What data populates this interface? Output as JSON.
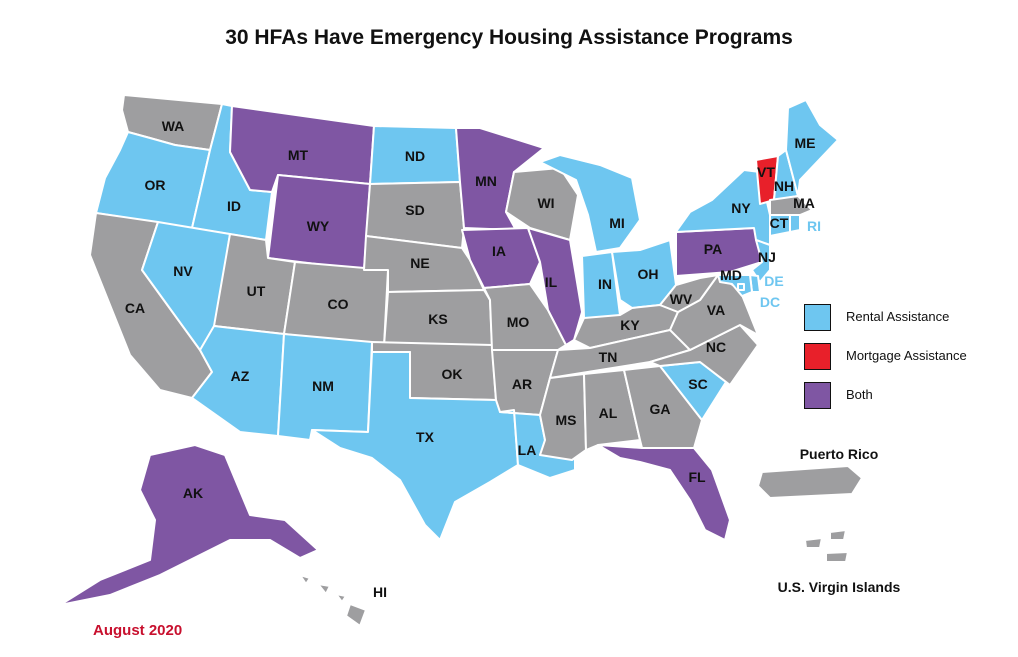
{
  "title": "30 HFAs Have Emergency Housing Assistance Programs",
  "date": "August 2020",
  "colors": {
    "rental": "#6ec6f0",
    "mortgage": "#e8202a",
    "both": "#7f56a3",
    "none": "#9e9ea0",
    "label_blue": "#6ec6f0",
    "date_red": "#c8102e"
  },
  "legend": [
    {
      "key": "rental",
      "label": "Rental Assistance"
    },
    {
      "key": "mortgage",
      "label": "Mortgage Assistance"
    },
    {
      "key": "both",
      "label": "Both"
    }
  ],
  "territory_labels": {
    "puerto_rico": "Puerto Rico",
    "virgin_islands": "U.S. Virgin Islands",
    "hawaii": "HI"
  },
  "states": [
    {
      "abbr": "WA",
      "category": "none"
    },
    {
      "abbr": "OR",
      "category": "rental"
    },
    {
      "abbr": "CA",
      "category": "none"
    },
    {
      "abbr": "ID",
      "category": "rental"
    },
    {
      "abbr": "NV",
      "category": "rental"
    },
    {
      "abbr": "MT",
      "category": "both"
    },
    {
      "abbr": "WY",
      "category": "both"
    },
    {
      "abbr": "UT",
      "category": "none"
    },
    {
      "abbr": "AZ",
      "category": "rental"
    },
    {
      "abbr": "CO",
      "category": "none"
    },
    {
      "abbr": "NM",
      "category": "rental"
    },
    {
      "abbr": "ND",
      "category": "rental"
    },
    {
      "abbr": "SD",
      "category": "none"
    },
    {
      "abbr": "NE",
      "category": "none"
    },
    {
      "abbr": "KS",
      "category": "none"
    },
    {
      "abbr": "OK",
      "category": "none"
    },
    {
      "abbr": "TX",
      "category": "rental"
    },
    {
      "abbr": "MN",
      "category": "both"
    },
    {
      "abbr": "IA",
      "category": "both"
    },
    {
      "abbr": "MO",
      "category": "none"
    },
    {
      "abbr": "AR",
      "category": "none"
    },
    {
      "abbr": "LA",
      "category": "rental"
    },
    {
      "abbr": "WI",
      "category": "none"
    },
    {
      "abbr": "IL",
      "category": "both"
    },
    {
      "abbr": "MI",
      "category": "rental"
    },
    {
      "abbr": "IN",
      "category": "rental"
    },
    {
      "abbr": "OH",
      "category": "rental"
    },
    {
      "abbr": "KY",
      "category": "none"
    },
    {
      "abbr": "TN",
      "category": "none"
    },
    {
      "abbr": "MS",
      "category": "none"
    },
    {
      "abbr": "AL",
      "category": "none"
    },
    {
      "abbr": "GA",
      "category": "none"
    },
    {
      "abbr": "FL",
      "category": "both"
    },
    {
      "abbr": "SC",
      "category": "rental"
    },
    {
      "abbr": "NC",
      "category": "none"
    },
    {
      "abbr": "VA",
      "category": "none"
    },
    {
      "abbr": "WV",
      "category": "none"
    },
    {
      "abbr": "PA",
      "category": "both"
    },
    {
      "abbr": "NY",
      "category": "rental"
    },
    {
      "abbr": "VT",
      "category": "mortgage"
    },
    {
      "abbr": "NH",
      "category": "rental"
    },
    {
      "abbr": "ME",
      "category": "rental"
    },
    {
      "abbr": "MA",
      "category": "none"
    },
    {
      "abbr": "CT",
      "category": "rental"
    },
    {
      "abbr": "RI",
      "category": "rental"
    },
    {
      "abbr": "NJ",
      "category": "rental"
    },
    {
      "abbr": "DE",
      "category": "rental"
    },
    {
      "abbr": "MD",
      "category": "rental"
    },
    {
      "abbr": "DC",
      "category": "rental"
    },
    {
      "abbr": "AK",
      "category": "both"
    },
    {
      "abbr": "HI",
      "category": "none"
    },
    {
      "abbr": "PR",
      "category": "none"
    },
    {
      "abbr": "VI",
      "category": "none"
    }
  ]
}
